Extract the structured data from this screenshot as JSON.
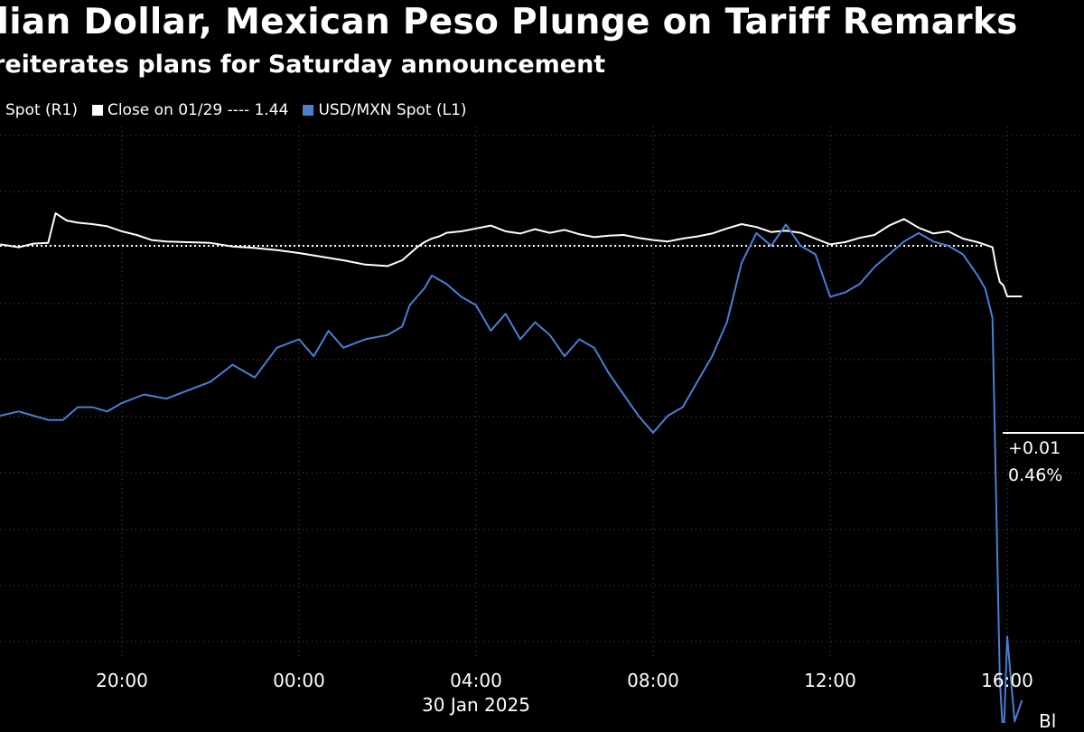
{
  "title": "dian Dollar, Mexican Peso Plunge on Tariff Remarks",
  "subtitle": "reiterates plans for Saturday announcement",
  "legend": {
    "cad_label": "Spot (R1)",
    "close_label": "Close on 01/29 ---- 1.44",
    "mxn_label": "USD/MXN Spot (L1)"
  },
  "colors": {
    "background": "#000000",
    "cad": "#ffffff",
    "mxn": "#4a7fd4",
    "grid": "#555555"
  },
  "corner_text": "Bl",
  "chart_data": {
    "type": "line",
    "title": "dian Dollar, Mexican Peso Plunge on Tariff Remarks",
    "subtitle": "reiterates plans for Saturday announcement",
    "x_ticks": [
      "20:00",
      "00:00",
      "04:00",
      "08:00",
      "12:00",
      "16:00"
    ],
    "x_date_label": "30 Jan 2025",
    "reference_line": {
      "label": "Close on 01/29 ---- 1.44",
      "value": 1.44,
      "style": "dotted"
    },
    "end_labels": [
      "+0.01",
      "0.46%"
    ],
    "grid": true,
    "series": [
      {
        "name": "Spot (R1)",
        "axis": "right",
        "color": "#ffffff",
        "x": [
          "17:15",
          "17:40",
          "18:00",
          "18:20",
          "18:30",
          "18:45",
          "19:00",
          "19:20",
          "19:40",
          "20:00",
          "20:20",
          "20:40",
          "21:00",
          "21:30",
          "22:00",
          "22:30",
          "23:00",
          "23:30",
          "00:00",
          "00:30",
          "01:00",
          "01:30",
          "02:00",
          "02:20",
          "02:40",
          "02:50",
          "03:00",
          "03:10",
          "03:20",
          "03:40",
          "04:00",
          "04:20",
          "04:40",
          "05:00",
          "05:20",
          "05:40",
          "06:00",
          "06:20",
          "06:40",
          "07:00",
          "07:20",
          "07:40",
          "08:00",
          "08:20",
          "08:40",
          "09:00",
          "09:20",
          "09:40",
          "10:00",
          "10:20",
          "10:40",
          "11:00",
          "11:20",
          "11:40",
          "12:00",
          "12:20",
          "12:40",
          "13:00",
          "13:20",
          "13:40",
          "14:00",
          "14:20",
          "14:40",
          "15:00",
          "15:20",
          "15:40",
          "15:45",
          "15:50",
          "15:55",
          "16:00",
          "16:20"
        ],
        "y": [
          1.4402,
          1.4398,
          1.4403,
          1.4404,
          1.4445,
          1.4435,
          1.4432,
          1.443,
          1.4427,
          1.442,
          1.4415,
          1.4408,
          1.4406,
          1.4405,
          1.4404,
          1.4399,
          1.4397,
          1.4394,
          1.439,
          1.4385,
          1.438,
          1.4374,
          1.4372,
          1.438,
          1.4398,
          1.4405,
          1.441,
          1.4413,
          1.4418,
          1.442,
          1.4424,
          1.4428,
          1.442,
          1.4417,
          1.4423,
          1.4418,
          1.4422,
          1.4416,
          1.4412,
          1.4414,
          1.4415,
          1.4411,
          1.4408,
          1.4406,
          1.441,
          1.4413,
          1.4417,
          1.4424,
          1.443,
          1.4426,
          1.4419,
          1.4421,
          1.4418,
          1.441,
          1.4402,
          1.4405,
          1.4411,
          1.4415,
          1.4428,
          1.4437,
          1.4425,
          1.4417,
          1.442,
          1.441,
          1.4405,
          1.4398,
          1.437,
          1.435,
          1.4345,
          1.433,
          1.433
        ]
      },
      {
        "name": "USD/MXN Spot (L1)",
        "axis": "left",
        "color": "#4a7fd4",
        "x": [
          "17:15",
          "17:40",
          "18:00",
          "18:20",
          "18:40",
          "19:00",
          "19:20",
          "19:40",
          "20:00",
          "20:30",
          "21:00",
          "21:30",
          "22:00",
          "22:30",
          "23:00",
          "23:30",
          "00:00",
          "00:20",
          "00:40",
          "01:00",
          "01:30",
          "02:00",
          "02:20",
          "02:30",
          "02:40",
          "02:50",
          "03:00",
          "03:20",
          "03:40",
          "04:00",
          "04:20",
          "04:40",
          "05:00",
          "05:20",
          "05:40",
          "06:00",
          "06:20",
          "06:40",
          "07:00",
          "07:20",
          "07:40",
          "08:00",
          "08:20",
          "08:40",
          "09:00",
          "09:20",
          "09:40",
          "10:00",
          "10:20",
          "10:40",
          "11:00",
          "11:20",
          "11:40",
          "12:00",
          "12:20",
          "12:40",
          "13:00",
          "13:20",
          "13:40",
          "14:00",
          "14:20",
          "14:40",
          "15:00",
          "15:20",
          "15:30",
          "15:40",
          "15:50",
          "15:55",
          "16:00",
          "16:10",
          "16:20"
        ],
        "y": [
          20.72,
          20.73,
          20.72,
          20.71,
          20.71,
          20.74,
          20.74,
          20.73,
          20.75,
          20.77,
          20.76,
          20.78,
          20.8,
          20.84,
          20.81,
          20.88,
          20.9,
          20.86,
          20.92,
          20.88,
          20.9,
          20.91,
          20.93,
          20.98,
          21.0,
          21.02,
          21.05,
          21.03,
          21.0,
          20.98,
          20.92,
          20.96,
          20.9,
          20.94,
          20.91,
          20.86,
          20.9,
          20.88,
          20.82,
          20.77,
          20.72,
          20.68,
          20.72,
          20.74,
          20.8,
          20.86,
          20.94,
          21.08,
          21.15,
          21.12,
          21.17,
          21.12,
          21.1,
          21.0,
          21.01,
          21.03,
          21.07,
          21.1,
          21.13,
          21.15,
          21.13,
          21.12,
          21.1,
          21.05,
          21.02,
          20.95,
          20.1,
          19.95,
          20.2,
          20.0,
          20.05
        ]
      }
    ]
  }
}
